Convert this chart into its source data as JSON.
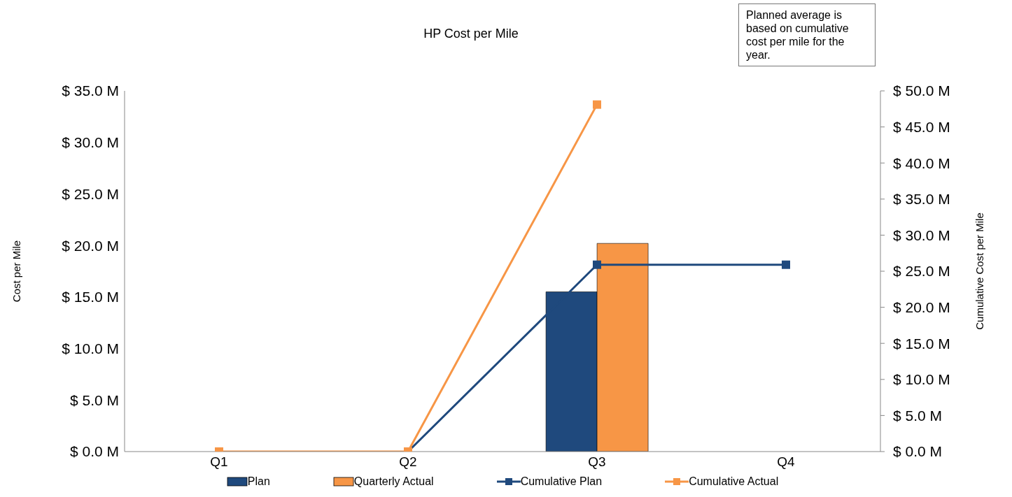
{
  "chart_data": {
    "type": "bar",
    "title": "HP Cost per Mile",
    "ylabel": "Cost per Mile",
    "y2label": "Cumulative Cost per Mile",
    "categories": [
      "Q1",
      "Q2",
      "Q3",
      "Q4"
    ],
    "series": [
      {
        "name": "Plan",
        "color": "#1f497d",
        "values": [
          null,
          null,
          15.5,
          null
        ]
      },
      {
        "name": "Quarterly Actual",
        "color": "#f79646",
        "values": [
          null,
          null,
          20.2,
          null
        ]
      },
      {
        "name": "Cumulative Plan",
        "type": "line",
        "axis": "y2",
        "marker": "square",
        "color": "#1f497d",
        "values": [
          null,
          0,
          25.9,
          25.9
        ]
      },
      {
        "name": "Cumulative Actual",
        "type": "line",
        "axis": "y2",
        "marker": "square",
        "color": "#f79646",
        "values": [
          0,
          0,
          48.1,
          null
        ]
      }
    ],
    "ylim": [
      0,
      35
    ],
    "yticks": [
      {
        "value": 0,
        "label": "$ 0.0 M"
      },
      {
        "value": 5,
        "label": "$ 5.0 M"
      },
      {
        "value": 10,
        "label": "$ 10.0 M"
      },
      {
        "value": 15,
        "label": "$ 15.0 M"
      },
      {
        "value": 20,
        "label": "$ 20.0 M"
      },
      {
        "value": 25,
        "label": "$ 25.0 M"
      },
      {
        "value": 30,
        "label": "$ 30.0 M"
      },
      {
        "value": 35,
        "label": "$ 35.0 M"
      }
    ],
    "y2lim": [
      0,
      50
    ],
    "y2ticks": [
      {
        "value": 0,
        "label": "$ 0.0 M"
      },
      {
        "value": 5,
        "label": "$ 5.0 M"
      },
      {
        "value": 10,
        "label": "$ 10.0 M"
      },
      {
        "value": 15,
        "label": "$ 15.0 M"
      },
      {
        "value": 20,
        "label": "$ 20.0 M"
      },
      {
        "value": 25,
        "label": "$ 25.0 M"
      },
      {
        "value": 30,
        "label": "$ 30.0 M"
      },
      {
        "value": 35,
        "label": "$ 35.0 M"
      },
      {
        "value": 40,
        "label": "$ 40.0 M"
      },
      {
        "value": 45,
        "label": "$ 45.0 M"
      },
      {
        "value": 50,
        "label": "$ 50.0 M"
      }
    ],
    "annotations": [
      "Planned average is based on cumulative cost per mile for the year."
    ],
    "legend": "bottom"
  }
}
